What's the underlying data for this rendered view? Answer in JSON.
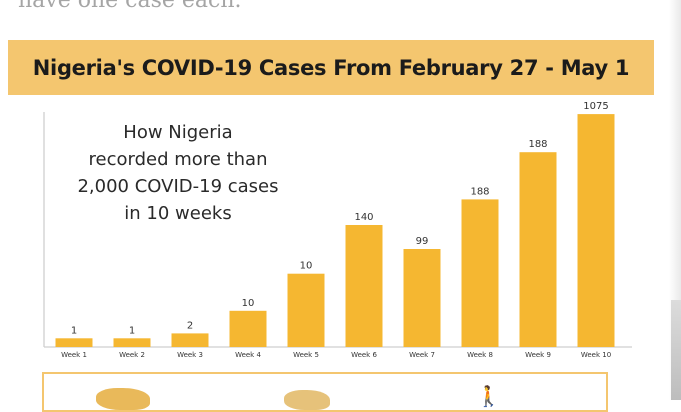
{
  "page": {
    "top_snippet": "have one case each."
  },
  "banner": {
    "title": "Nigeria's COVID-19 Cases From February 27 - May 1"
  },
  "chart_data": {
    "type": "bar",
    "title": "How Nigeria recorded more than 2,000 COVID-19 cases in 10 weeks",
    "title_lines": [
      "How Nigeria",
      "recorded more than",
      "2,000 COVID-19 cases",
      "in 10 weeks"
    ],
    "categories": [
      "Week 1",
      "Week 2",
      "Week 3",
      "Week 4",
      "Week 5",
      "Week 6",
      "Week 7",
      "Week 8",
      "Week 9",
      "Week 10"
    ],
    "values": [
      1,
      1,
      2,
      10,
      10,
      140,
      99,
      188,
      188,
      1075
    ],
    "value_labels": [
      "1",
      "1",
      "2",
      "10",
      "10",
      "140",
      "99",
      "188",
      "188",
      "1075"
    ],
    "bar_level": [
      0.037,
      0.037,
      0.058,
      0.154,
      0.312,
      0.519,
      0.417,
      0.628,
      0.829,
      0.991
    ],
    "xlabel": "",
    "ylabel": "",
    "grid": false,
    "legend": "none",
    "bar_color": "#f5b731"
  },
  "bottom_strip": {
    "icon": "person-icon"
  }
}
